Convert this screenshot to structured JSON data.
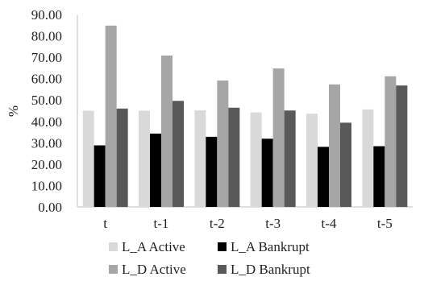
{
  "chart_data": {
    "type": "bar",
    "title": "",
    "xlabel": "",
    "ylabel": "%",
    "ylim": [
      0,
      90
    ],
    "ytick_step": 10,
    "ytick_labels": [
      "0.00",
      "10.00",
      "20.00",
      "30.00",
      "40.00",
      "50.00",
      "60.00",
      "70.00",
      "80.00",
      "90.00"
    ],
    "grid": false,
    "legend_position": "bottom",
    "categories": [
      "t",
      "t-1",
      "t-2",
      "t-3",
      "t-4",
      "t-5"
    ],
    "series": [
      {
        "name": "L_A Active",
        "color": "#d9d9d9",
        "values": [
          45.0,
          45.0,
          45.2,
          44.2,
          43.6,
          45.6
        ]
      },
      {
        "name": "L_A Bankrupt",
        "color": "#000000",
        "values": [
          28.8,
          34.3,
          32.8,
          31.9,
          28.1,
          28.4
        ]
      },
      {
        "name": "L_D Active",
        "color": "#a6a6a6",
        "values": [
          84.8,
          70.8,
          59.1,
          64.8,
          57.3,
          61.1
        ]
      },
      {
        "name": "L_D Bankrupt",
        "color": "#595959",
        "values": [
          46.0,
          49.6,
          46.4,
          45.1,
          39.4,
          56.8
        ]
      }
    ]
  }
}
